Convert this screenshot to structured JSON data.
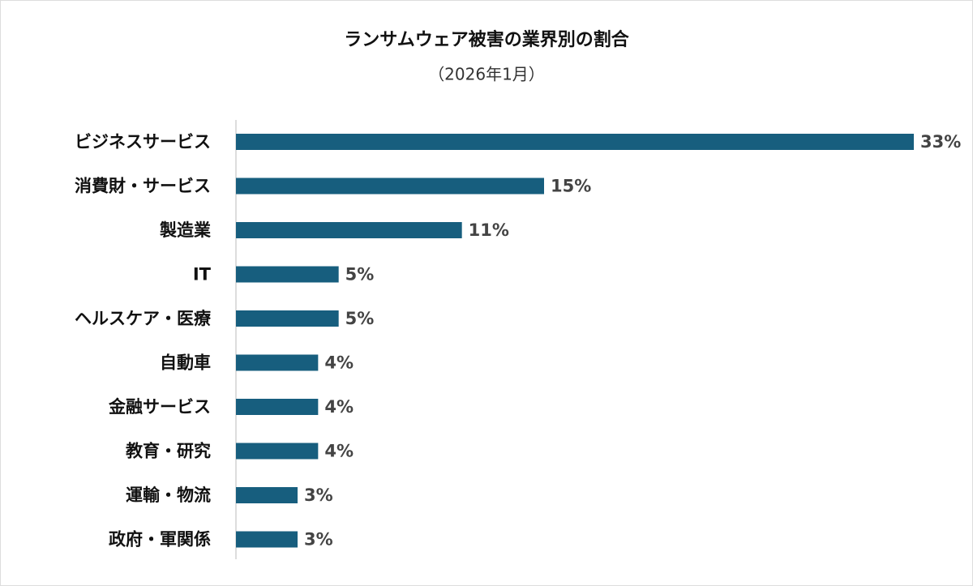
{
  "chart_data": {
    "type": "bar",
    "orientation": "horizontal",
    "title": "ランサムウェア被害の業界別の割合",
    "subtitle": "（2026年1月）",
    "categories": [
      "ビジネスサービス",
      "消費財・サービス",
      "製造業",
      "IT",
      "ヘルスケア・医療",
      "自動車",
      "金融サービス",
      "教育・研究",
      "運輸・物流",
      "政府・軍関係"
    ],
    "values": [
      33,
      15,
      11,
      5,
      5,
      4,
      4,
      4,
      3,
      3
    ],
    "value_labels": [
      "33%",
      "15%",
      "11%",
      "5%",
      "5%",
      "4%",
      "4%",
      "4%",
      "3%",
      "3%"
    ],
    "color": "#175e7e"
  }
}
